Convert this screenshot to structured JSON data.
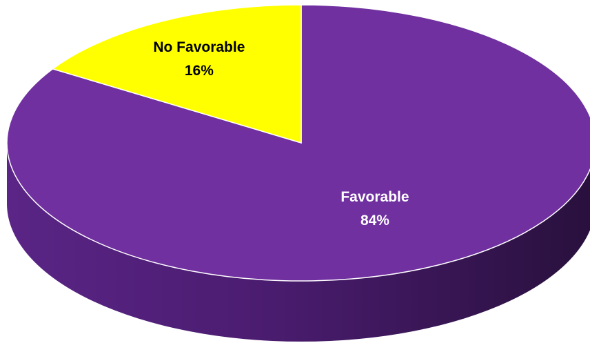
{
  "chart_data": {
    "type": "pie",
    "style": "3d",
    "categories": [
      "Favorable",
      "No Favorable"
    ],
    "values": [
      84,
      16
    ],
    "value_labels": [
      "84%",
      "16%"
    ],
    "colors": {
      "Favorable": "#7030A0",
      "No Favorable": "#FFFF00"
    },
    "label_color": "#FFFFFF",
    "label_color_on_light": "#000000",
    "legend": "none"
  }
}
